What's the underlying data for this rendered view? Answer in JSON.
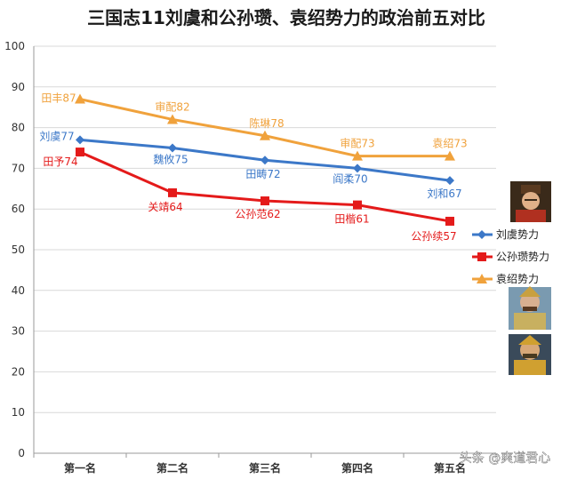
{
  "chart_data": {
    "type": "line",
    "title": "三国志11刘虞和公孙瓒、袁绍势力的政治前五对比",
    "categories": [
      "第一名",
      "第二名",
      "第三名",
      "第四名",
      "第五名"
    ],
    "ylim": [
      0,
      100
    ],
    "y_ticks": [
      0,
      10,
      20,
      30,
      40,
      50,
      60,
      70,
      80,
      90,
      100
    ],
    "grid": true,
    "legend_position": "right",
    "series": [
      {
        "name": "刘虞势力",
        "color": "#3c78c8",
        "marker": "diamond",
        "values": [
          77,
          75,
          72,
          70,
          67
        ],
        "labels": [
          "刘虞77",
          "魏攸75",
          "田畴72",
          "阎柔70",
          "刘和67"
        ]
      },
      {
        "name": "公孙瓒势力",
        "color": "#e41a1a",
        "marker": "square",
        "values": [
          74,
          64,
          62,
          61,
          57
        ],
        "labels": [
          "田予74",
          "关靖64",
          "公孙范62",
          "田楷61",
          "公孙续57"
        ]
      },
      {
        "name": "袁绍势力",
        "color": "#f0a23c",
        "marker": "triangle",
        "values": [
          87,
          82,
          78,
          73,
          73
        ],
        "labels": [
          "田丰87",
          "审配82",
          "陈琳78",
          "审配73",
          "袁绍73"
        ]
      }
    ]
  },
  "watermark": "头条 @爽道君心",
  "portraits": [
    "portrait-liu-yu",
    "portrait-gongsun-zan",
    "portrait-yuan-shao"
  ]
}
